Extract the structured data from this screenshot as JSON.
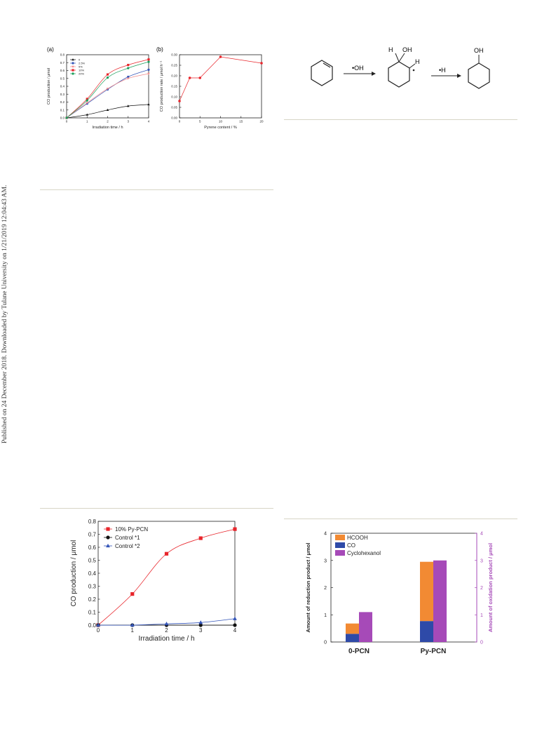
{
  "sidebar": {
    "published_note": "Published on 24 December 2018. Downloaded by Tulane University on 1/21/2019 12:04:43 AM."
  },
  "colors": {
    "red": "#e8252b",
    "blue": "#3455b8",
    "black": "#111111",
    "green": "#1b9e5a",
    "pink": "#f08a8a",
    "orange": "#f28a33",
    "navy": "#2e4aa8",
    "purple": "#a64ab8",
    "rule": "#d7d5c6"
  },
  "scheme": {
    "reagent1": "•OH",
    "reagent2": "•H",
    "intermediate_labels": [
      "H",
      "OH",
      "H"
    ],
    "product_label": "OH"
  },
  "chart_data": [
    {
      "id": "fig-a",
      "type": "line",
      "panel_label": "(a)",
      "xlabel": "Irradiation time / h",
      "ylabel": "CO production / μmol",
      "x": [
        0,
        1,
        2,
        3,
        4
      ],
      "xlim": [
        0,
        4
      ],
      "ylim": [
        0,
        0.8
      ],
      "xticks": [
        "0",
        "1",
        "2",
        "3",
        "4"
      ],
      "yticks": [
        "0.0",
        "0.1",
        "0.2",
        "0.3",
        "0.4",
        "0.5",
        "0.6",
        "0.7",
        "0.8"
      ],
      "legend_position": "top-left",
      "series": [
        {
          "name": "0",
          "values": [
            0,
            0.04,
            0.1,
            0.15,
            0.17
          ],
          "marker": "triangle",
          "color": "#111111"
        },
        {
          "name": "2.5%",
          "values": [
            0,
            0.18,
            0.36,
            0.52,
            0.61
          ],
          "marker": "circle",
          "color": "#3455b8"
        },
        {
          "name": "5%",
          "values": [
            0,
            0.19,
            0.37,
            0.5,
            0.56
          ],
          "marker": "triangle-down",
          "color": "#f08a8a"
        },
        {
          "name": "10%",
          "values": [
            0,
            0.24,
            0.55,
            0.67,
            0.74
          ],
          "marker": "square",
          "color": "#e8252b"
        },
        {
          "name": "20%",
          "values": [
            0,
            0.22,
            0.51,
            0.63,
            0.71
          ],
          "marker": "circle",
          "color": "#1b9e5a"
        }
      ]
    },
    {
      "id": "fig-b",
      "type": "line",
      "panel_label": "(b)",
      "xlabel": "Pyrene content / %",
      "ylabel": "CO production rate / μmol h⁻¹",
      "x": [
        0,
        2.5,
        5,
        10,
        20
      ],
      "xlim": [
        0,
        20
      ],
      "ylim": [
        0,
        0.3
      ],
      "xticks": [
        "0",
        "5",
        "10",
        "15",
        "20"
      ],
      "yticks": [
        "0.00",
        "0.05",
        "0.10",
        "0.15",
        "0.20",
        "0.25",
        "0.30"
      ],
      "series": [
        {
          "name": "",
          "values": [
            0.08,
            0.19,
            0.19,
            0.29,
            0.26
          ],
          "marker": "circle",
          "color": "#e8252b"
        }
      ]
    },
    {
      "id": "fig-c",
      "type": "line",
      "xlabel": "Irradiation time / h",
      "ylabel": "CO production / μmol",
      "x": [
        0,
        1,
        2,
        3,
        4
      ],
      "xlim": [
        0,
        4
      ],
      "ylim": [
        0,
        0.8
      ],
      "xticks": [
        "0",
        "1",
        "2",
        "3",
        "4"
      ],
      "yticks": [
        "0.0",
        "0.1",
        "0.2",
        "0.3",
        "0.4",
        "0.5",
        "0.6",
        "0.7",
        "0.8"
      ],
      "legend_position": "top-left",
      "series": [
        {
          "name": "10% Py-PCN",
          "values": [
            0,
            0.24,
            0.55,
            0.67,
            0.74
          ],
          "marker": "square",
          "color": "#e8252b"
        },
        {
          "name": "Control *1",
          "values": [
            0,
            0,
            0,
            0,
            0
          ],
          "marker": "circle",
          "color": "#111111"
        },
        {
          "name": "Control *2",
          "values": [
            0,
            0,
            0.01,
            0.02,
            0.05
          ],
          "marker": "triangle",
          "color": "#3455b8"
        }
      ]
    },
    {
      "id": "fig-d",
      "type": "bar",
      "categories": [
        "0-PCN",
        "Py-PCN"
      ],
      "ylabel": "Amount of reduction product / μmol",
      "ylabel_right": "Amount of oxidation product / μmol",
      "ylim": [
        0,
        4
      ],
      "yticks": [
        "0",
        "1",
        "2",
        "3",
        "4"
      ],
      "legend_position": "top-left",
      "series": [
        {
          "name": "HCOOH",
          "values": [
            0.38,
            2.18
          ],
          "color": "#f28a33",
          "stack": "reduction"
        },
        {
          "name": "CO",
          "values": [
            0.3,
            0.77
          ],
          "color": "#2e4aa8",
          "stack": "reduction"
        },
        {
          "name": "Cyclohexanol",
          "values": [
            1.1,
            3.0
          ],
          "color": "#a64ab8",
          "stack": "oxidation"
        }
      ]
    }
  ]
}
